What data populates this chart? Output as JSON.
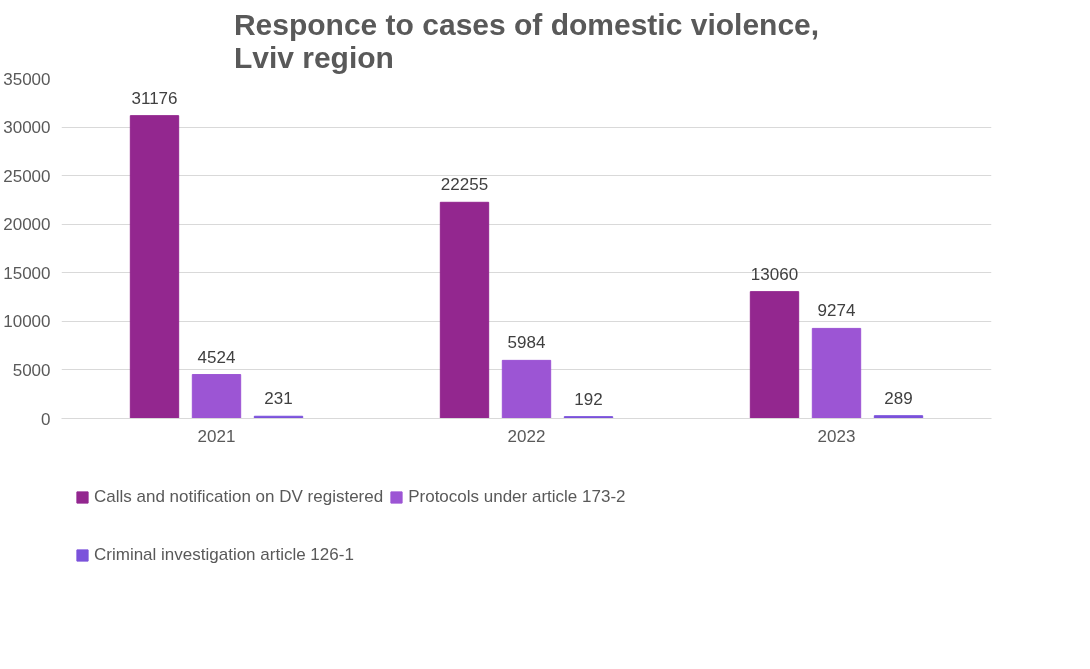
{
  "chart_data": {
    "type": "bar",
    "title": "Responce to cases of domestic violence,\nLviv region",
    "categories": [
      "2021",
      "2022",
      "2023"
    ],
    "series": [
      {
        "name": "Calls and notification on DV registered",
        "color": "#93278f",
        "values": [
          31176,
          22255,
          13060
        ]
      },
      {
        "name": "Protocols under article 173-2",
        "color": "#9c55d4",
        "values": [
          4524,
          5984,
          9274
        ]
      },
      {
        "name": "Criminal investigation article 126-1",
        "color": "#7b52db",
        "values": [
          231,
          192,
          289
        ]
      }
    ],
    "ylim": [
      0,
      35000
    ],
    "yticks": [
      0,
      5000,
      10000,
      15000,
      20000,
      25000,
      30000,
      35000
    ],
    "grid": "y",
    "legend": "bottom",
    "data_labels": true
  }
}
